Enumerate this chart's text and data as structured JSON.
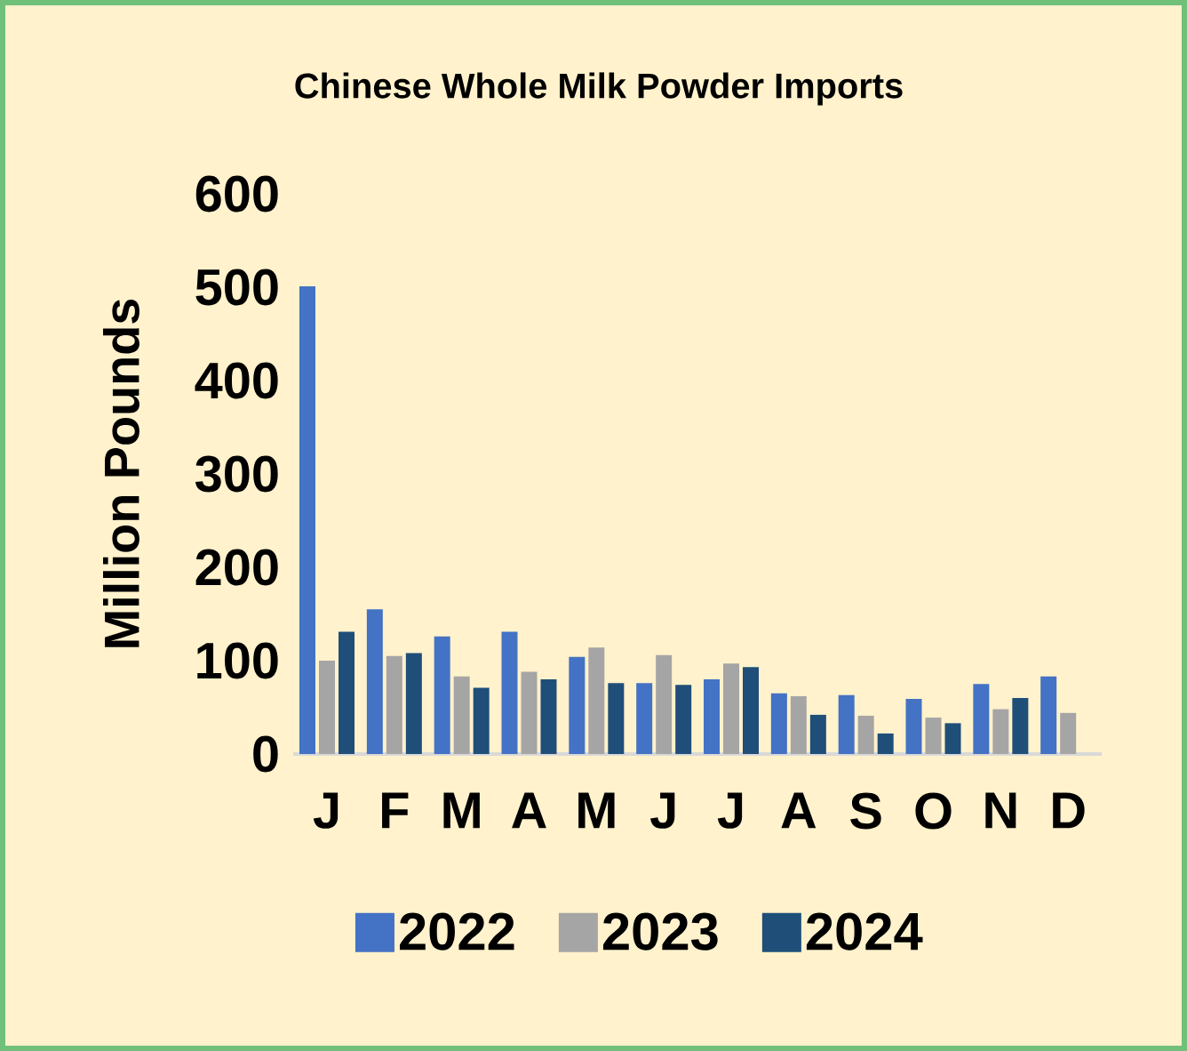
{
  "chart_data": {
    "type": "bar",
    "title": "Chinese Whole Milk Powder Imports",
    "ylabel": "Million Pounds",
    "categories": [
      "J",
      "F",
      "M",
      "A",
      "M",
      "J",
      "J",
      "A",
      "S",
      "O",
      "N",
      "D"
    ],
    "series": [
      {
        "name": "2022",
        "color": "#4472c4",
        "values": [
          501,
          155,
          126,
          131,
          104,
          76,
          80,
          65,
          63,
          59,
          75,
          83
        ]
      },
      {
        "name": "2023",
        "color": "#a5a5a5",
        "values": [
          100,
          105,
          83,
          88,
          114,
          106,
          97,
          62,
          41,
          39,
          48,
          44
        ]
      },
      {
        "name": "2024",
        "color": "#1f4e79",
        "values": [
          131,
          108,
          71,
          80,
          76,
          74,
          93,
          42,
          22,
          33,
          60,
          null
        ]
      }
    ],
    "ylim": [
      0,
      600
    ],
    "yticks": [
      0,
      100,
      200,
      300,
      400,
      500,
      600
    ],
    "grid": false,
    "legend": "bottom"
  }
}
